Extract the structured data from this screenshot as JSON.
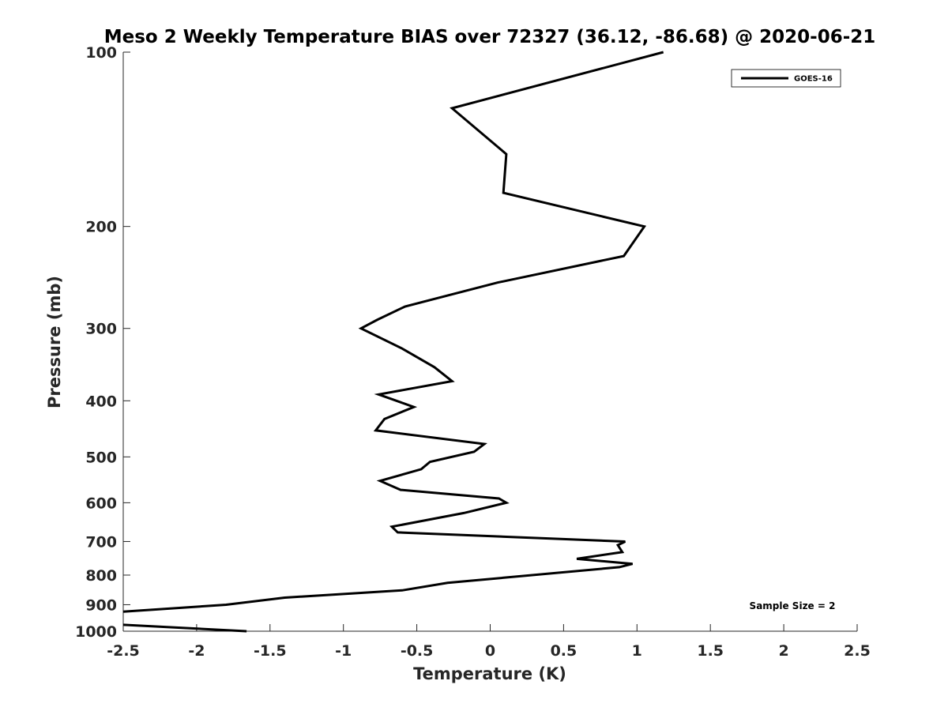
{
  "chart_data": {
    "type": "line",
    "title": "Meso 2 Weekly Temperature BIAS over 72327 (36.12, -86.68) @ 2020-06-21",
    "xlabel": "Temperature (K)",
    "ylabel": "Pressure (mb)",
    "xlim": [
      -2.5,
      2.5
    ],
    "ylim": [
      100,
      1000
    ],
    "y_scale": "log",
    "y_reversed": true,
    "grid": false,
    "legend_position": "top-right",
    "x_ticks": [
      "-2.5",
      "-2",
      "-1.5",
      "-1",
      "-0.5",
      "0",
      "0.5",
      "1",
      "1.5",
      "2",
      "2.5"
    ],
    "x_tick_values": [
      -2.5,
      -2,
      -1.5,
      -1,
      -0.5,
      0,
      0.5,
      1,
      1.5,
      2,
      2.5
    ],
    "y_ticks": [
      "100",
      "200",
      "300",
      "400",
      "500",
      "600",
      "700",
      "800",
      "900",
      "1000"
    ],
    "y_tick_values": [
      100,
      200,
      300,
      400,
      500,
      600,
      700,
      800,
      900,
      1000
    ],
    "series": [
      {
        "name": "GOES-16",
        "color": "#000000",
        "points": [
          {
            "x": 1.18,
            "p": 100
          },
          {
            "x": -0.26,
            "p": 125
          },
          {
            "x": 0.11,
            "p": 150
          },
          {
            "x": 0.09,
            "p": 175
          },
          {
            "x": 1.05,
            "p": 200
          },
          {
            "x": 0.91,
            "p": 225
          },
          {
            "x": 0.05,
            "p": 250
          },
          {
            "x": -0.58,
            "p": 275
          },
          {
            "x": -0.77,
            "p": 290
          },
          {
            "x": -0.88,
            "p": 300
          },
          {
            "x": -0.6,
            "p": 325
          },
          {
            "x": -0.38,
            "p": 350
          },
          {
            "x": -0.26,
            "p": 370
          },
          {
            "x": -0.76,
            "p": 390
          },
          {
            "x": -0.52,
            "p": 410
          },
          {
            "x": -0.72,
            "p": 430
          },
          {
            "x": -0.78,
            "p": 450
          },
          {
            "x": -0.04,
            "p": 475
          },
          {
            "x": -0.11,
            "p": 490
          },
          {
            "x": -0.41,
            "p": 510
          },
          {
            "x": -0.47,
            "p": 525
          },
          {
            "x": -0.75,
            "p": 550
          },
          {
            "x": -0.61,
            "p": 570
          },
          {
            "x": 0.06,
            "p": 590
          },
          {
            "x": 0.11,
            "p": 600
          },
          {
            "x": -0.18,
            "p": 625
          },
          {
            "x": -0.67,
            "p": 660
          },
          {
            "x": -0.63,
            "p": 675
          },
          {
            "x": 0.92,
            "p": 700
          },
          {
            "x": 0.87,
            "p": 710
          },
          {
            "x": 0.9,
            "p": 730
          },
          {
            "x": 0.59,
            "p": 750
          },
          {
            "x": 0.97,
            "p": 765
          },
          {
            "x": 0.88,
            "p": 775
          },
          {
            "x": -0.29,
            "p": 825
          },
          {
            "x": -0.6,
            "p": 850
          },
          {
            "x": -1.4,
            "p": 875
          },
          {
            "x": -1.8,
            "p": 900
          },
          {
            "x": -2.5,
            "p": 925
          }
        ]
      },
      {
        "name": "",
        "color": "#000000",
        "points": [
          {
            "x": -2.5,
            "p": 975
          },
          {
            "x": -1.66,
            "p": 1000
          }
        ]
      }
    ],
    "annotations": [
      "Sample Size = 2"
    ]
  }
}
